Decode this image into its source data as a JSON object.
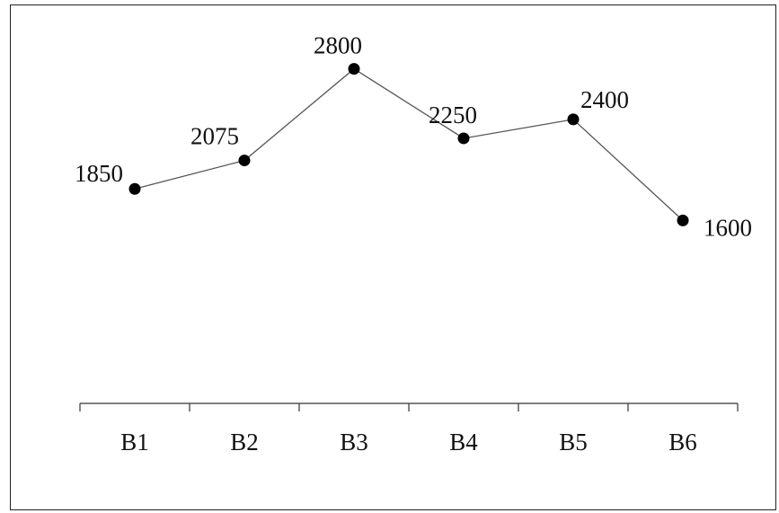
{
  "chart_data": {
    "type": "line",
    "categories": [
      "B1",
      "B2",
      "B3",
      "B4",
      "B5",
      "B6"
    ],
    "values": [
      1850,
      2075,
      2800,
      2250,
      2400,
      1600
    ],
    "data_labels": [
      "1850",
      "2075",
      "2800",
      "2250",
      "2400",
      "1600"
    ],
    "title": "",
    "xlabel": "",
    "ylabel": "",
    "y_axis_visible": false,
    "grid": false,
    "legend": "none",
    "line_color": "#555555",
    "marker_color": "#000000"
  }
}
